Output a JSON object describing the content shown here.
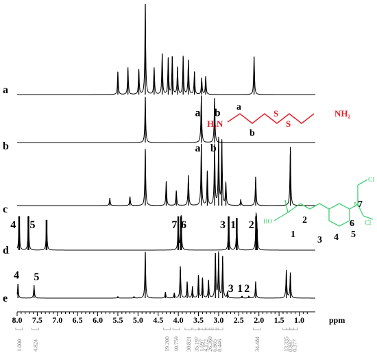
{
  "chart_data": {
    "type": "line",
    "x_unit": "ppm",
    "xlim": [
      8.0,
      0.6
    ],
    "x_axis_reversed": true,
    "x_ticks": [
      "8.0",
      "7.5",
      "7.0",
      "6.5",
      "6.0",
      "5.5",
      "5.0",
      "4.5",
      "4.0",
      "3.5",
      "3.0",
      "2.5",
      "2.0",
      "1.5",
      "1.0"
    ],
    "series": [
      {
        "name": "a",
        "peaks": [
          {
            "ppm": 5.5,
            "h": 0.25
          },
          {
            "ppm": 5.25,
            "h": 0.3
          },
          {
            "ppm": 4.98,
            "h": 0.28
          },
          {
            "ppm": 4.82,
            "h": 1.0
          },
          {
            "ppm": 4.6,
            "h": 0.3
          },
          {
            "ppm": 4.4,
            "h": 0.45
          },
          {
            "ppm": 4.25,
            "h": 0.4
          },
          {
            "ppm": 4.15,
            "h": 0.42
          },
          {
            "ppm": 4.02,
            "h": 0.3
          },
          {
            "ppm": 3.88,
            "h": 0.42
          },
          {
            "ppm": 3.75,
            "h": 0.38
          },
          {
            "ppm": 3.6,
            "h": 0.25
          },
          {
            "ppm": 3.42,
            "h": 0.18
          },
          {
            "ppm": 3.32,
            "h": 0.2
          },
          {
            "ppm": 2.12,
            "h": 0.42
          }
        ],
        "labels": []
      },
      {
        "name": "b",
        "peaks": [
          {
            "ppm": 4.82,
            "h": 0.95
          },
          {
            "ppm": 3.43,
            "h": 0.98
          },
          {
            "ppm": 3.1,
            "h": 0.92
          }
        ],
        "labels": [
          {
            "text": "a",
            "ppm": 3.5
          },
          {
            "text": "b",
            "ppm": 3.02
          }
        ]
      },
      {
        "name": "c",
        "peaks": [
          {
            "ppm": 5.7,
            "h": 0.1
          },
          {
            "ppm": 5.2,
            "h": 0.12
          },
          {
            "ppm": 4.82,
            "h": 0.75
          },
          {
            "ppm": 4.3,
            "h": 0.32
          },
          {
            "ppm": 4.05,
            "h": 0.2
          },
          {
            "ppm": 3.75,
            "h": 0.4
          },
          {
            "ppm": 3.43,
            "h": 0.82
          },
          {
            "ppm": 3.28,
            "h": 0.45
          },
          {
            "ppm": 3.1,
            "h": 0.8
          },
          {
            "ppm": 3.0,
            "h": 0.88
          },
          {
            "ppm": 2.92,
            "h": 0.86
          },
          {
            "ppm": 2.82,
            "h": 0.3
          },
          {
            "ppm": 2.45,
            "h": 0.08
          },
          {
            "ppm": 2.08,
            "h": 0.38
          },
          {
            "ppm": 1.22,
            "h": 0.78
          }
        ],
        "labels": [
          {
            "text": "a",
            "ppm": 3.5
          },
          {
            "text": "b",
            "ppm": 3.12
          }
        ]
      },
      {
        "name": "d",
        "peaks": [
          {
            "ppm": 7.95,
            "h": 0.95
          },
          {
            "ppm": 7.72,
            "h": 0.95
          },
          {
            "ppm": 7.27,
            "h": 0.85
          },
          {
            "ppm": 4.0,
            "h": 0.95
          },
          {
            "ppm": 3.93,
            "h": 0.95
          },
          {
            "ppm": 2.75,
            "h": 0.95
          },
          {
            "ppm": 2.55,
            "h": 0.9
          },
          {
            "ppm": 2.07,
            "h": 0.95
          },
          {
            "ppm": 2.05,
            "h": 0.6
          }
        ],
        "labels": [
          {
            "text": "4",
            "ppm": 8.08
          },
          {
            "text": "5",
            "ppm": 7.6
          },
          {
            "text": "7",
            "ppm": 4.08
          },
          {
            "text": "6",
            "ppm": 3.85
          },
          {
            "text": "3",
            "ppm": 2.88
          },
          {
            "text": "1",
            "ppm": 2.62
          },
          {
            "text": "2",
            "ppm": 2.17
          }
        ]
      },
      {
        "name": "e",
        "peaks": [
          {
            "ppm": 7.98,
            "h": 0.28
          },
          {
            "ppm": 7.58,
            "h": 0.25
          },
          {
            "ppm": 5.5,
            "h": 0.03
          },
          {
            "ppm": 5.1,
            "h": 0.03
          },
          {
            "ppm": 4.82,
            "h": 0.9
          },
          {
            "ppm": 4.32,
            "h": 0.12
          },
          {
            "ppm": 4.1,
            "h": 0.1
          },
          {
            "ppm": 3.95,
            "h": 0.62
          },
          {
            "ppm": 3.78,
            "h": 0.32
          },
          {
            "ppm": 3.65,
            "h": 0.22
          },
          {
            "ppm": 3.5,
            "h": 0.45
          },
          {
            "ppm": 3.4,
            "h": 0.4
          },
          {
            "ppm": 3.25,
            "h": 0.35
          },
          {
            "ppm": 3.08,
            "h": 0.88
          },
          {
            "ppm": 3.0,
            "h": 0.88
          },
          {
            "ppm": 2.9,
            "h": 0.82
          },
          {
            "ppm": 2.78,
            "h": 0.12
          },
          {
            "ppm": 2.42,
            "h": 0.04
          },
          {
            "ppm": 2.25,
            "h": 0.04
          },
          {
            "ppm": 2.08,
            "h": 0.32
          },
          {
            "ppm": 1.32,
            "h": 0.55
          },
          {
            "ppm": 1.22,
            "h": 0.5
          }
        ],
        "labels": [
          {
            "text": "4",
            "ppm": 8.0
          },
          {
            "text": "5",
            "ppm": 7.5
          },
          {
            "text": "3",
            "ppm": 2.68
          },
          {
            "text": "1",
            "ppm": 2.45
          },
          {
            "text": "2",
            "ppm": 2.28
          }
        ]
      }
    ],
    "integrals": [
      {
        "ppm": 7.95,
        "value": "1.000"
      },
      {
        "ppm": 7.55,
        "value": "4.824"
      },
      {
        "ppm": 4.28,
        "value": "19.200"
      },
      {
        "ppm": 4.05,
        "value": "10.759"
      },
      {
        "ppm": 3.75,
        "value": "30.821"
      },
      {
        "ppm": 3.55,
        "value": "35.197"
      },
      {
        "ppm": 3.42,
        "value": "1.697"
      },
      {
        "ppm": 3.32,
        "value": "4.172"
      },
      {
        "ppm": 3.22,
        "value": "26.360"
      },
      {
        "ppm": 3.1,
        "value": "6.865"
      },
      {
        "ppm": 2.98,
        "value": "8.446"
      },
      {
        "ppm": 2.05,
        "value": "34.484"
      },
      {
        "ppm": 1.32,
        "value": "13.335"
      },
      {
        "ppm": 1.22,
        "value": "0.847"
      },
      {
        "ppm": 1.12,
        "value": "0.377"
      }
    ]
  },
  "structures": {
    "cystamine": {
      "left_amine": "H₂N",
      "right_amine": "NH₂",
      "sulfur": "S",
      "label_a": "a",
      "label_b": "b",
      "color": "#e8212a"
    },
    "chlorambucil": {
      "chlorine": "Cl",
      "nitrogen": "N",
      "acid_label": "HO",
      "label_1": "1",
      "label_2": "2",
      "label_3": "3",
      "label_4": "4",
      "label_5": "5",
      "label_6": "6",
      "label_7": "7",
      "color": "#3fcf6f"
    }
  }
}
